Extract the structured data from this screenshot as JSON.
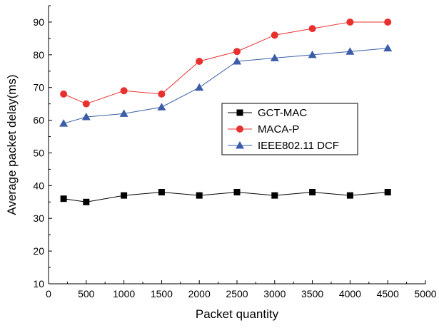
{
  "chart_data": {
    "type": "line",
    "xlabel": "Packet quantity",
    "ylabel": "Average packet delay(ms)",
    "xlim": [
      0,
      5000
    ],
    "ylim": [
      10,
      95
    ],
    "x_ticks": [
      0,
      500,
      1000,
      1500,
      2000,
      2500,
      3000,
      3500,
      4000,
      4500,
      5000
    ],
    "y_ticks": [
      10,
      20,
      30,
      40,
      50,
      60,
      70,
      80,
      90
    ],
    "grid": false,
    "legend_position": "center-right",
    "x": [
      200,
      500,
      1000,
      1500,
      2000,
      2500,
      3000,
      3500,
      4000,
      4500
    ],
    "series": [
      {
        "name": "GCT-MAC",
        "values": [
          36,
          35,
          37,
          38,
          37,
          38,
          37,
          38,
          37,
          38
        ],
        "color": "#000000",
        "marker": "square"
      },
      {
        "name": "MACA-P",
        "values": [
          68,
          65,
          69,
          68,
          78,
          81,
          86,
          88,
          90,
          90
        ],
        "color": "#e8302f",
        "marker": "circle"
      },
      {
        "name": "IEEE802.11 DCF",
        "values": [
          59,
          61,
          62,
          64,
          70,
          78,
          79,
          80,
          81,
          82
        ],
        "color": "#3b5da8",
        "marker": "triangle"
      }
    ]
  }
}
